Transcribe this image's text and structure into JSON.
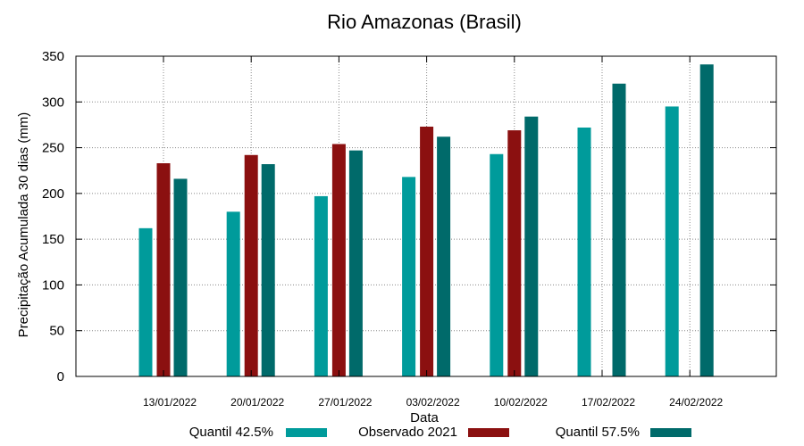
{
  "chart_data": {
    "type": "bar",
    "title": "Rio Amazonas (Brasil)",
    "xlabel": "Data",
    "ylabel": "Precipitação Acumulada 30 dias (mm)",
    "ylim": [
      0,
      350
    ],
    "yticks": [
      0,
      50,
      100,
      150,
      200,
      250,
      300,
      350
    ],
    "grid": true,
    "legend_position": "bottom",
    "categories": [
      "13/01/2022",
      "20/01/2022",
      "27/01/2022",
      "03/02/2022",
      "10/02/2022",
      "17/02/2022",
      "24/02/2022"
    ],
    "series": [
      {
        "name": "Quantil 42.5%",
        "color": "#009B9B",
        "values": [
          162,
          180,
          197,
          218,
          243,
          272,
          295
        ]
      },
      {
        "name": "Observado 2021",
        "color": "#8B1010",
        "values": [
          233,
          242,
          254,
          273,
          269,
          null,
          null
        ]
      },
      {
        "name": "Quantil 57.5%",
        "color": "#006A6A",
        "values": [
          216,
          232,
          247,
          262,
          284,
          320,
          341
        ]
      }
    ]
  }
}
